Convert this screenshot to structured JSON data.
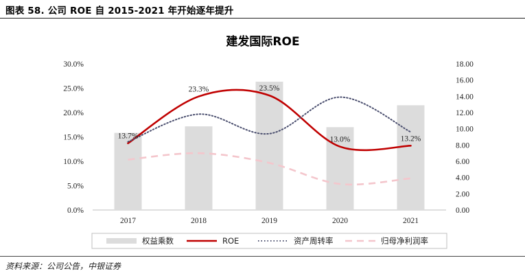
{
  "header": {
    "figure_title": "图表 58. 公司 ROE 自 2015-2021 年开始逐年提升"
  },
  "source": "资料来源：公司公告，中银证券",
  "chart_data": {
    "type": "bar",
    "title": "建发国际ROE",
    "categories": [
      "2017",
      "2018",
      "2019",
      "2020",
      "2021"
    ],
    "left_axis": {
      "min": 0,
      "max": 30,
      "step": 5,
      "tick_labels": [
        "0.0%",
        "5.0%",
        "10.0%",
        "15.0%",
        "20.0%",
        "25.0%",
        "30.0%"
      ]
    },
    "right_axis": {
      "min": 0,
      "max": 18,
      "step": 2,
      "tick_labels": [
        "0.00",
        "2.00",
        "4.00",
        "6.00",
        "8.00",
        "10.00",
        "12.00",
        "14.00",
        "16.00",
        "18.00"
      ]
    },
    "series": [
      {
        "name": "权益乘数",
        "type": "bar",
        "axis": "right",
        "color": "#dcdcdc",
        "values": [
          9.5,
          10.3,
          15.8,
          10.2,
          12.9
        ]
      },
      {
        "name": "ROE",
        "type": "line",
        "axis": "left",
        "color": "#c00000",
        "style": "solid",
        "values": [
          13.7,
          23.3,
          23.5,
          13.0,
          13.2
        ],
        "labels": [
          "13.7%",
          "23.3%",
          "23.5%",
          "13.0%",
          "13.2%"
        ]
      },
      {
        "name": "资产周转率",
        "type": "line",
        "axis": "right",
        "color": "#4a4e6e",
        "style": "dotted",
        "values": [
          8.4,
          11.8,
          9.4,
          13.9,
          9.6
        ]
      },
      {
        "name": "归母净利润率",
        "type": "line",
        "axis": "right",
        "color": "#f4c6cc",
        "style": "dashed",
        "values": [
          6.2,
          7.0,
          5.8,
          3.2,
          3.9
        ]
      }
    ],
    "legend": {
      "placement": "bottom",
      "entries": [
        "权益乘数",
        "ROE",
        "资产周转率",
        "归母净利润率"
      ]
    }
  }
}
